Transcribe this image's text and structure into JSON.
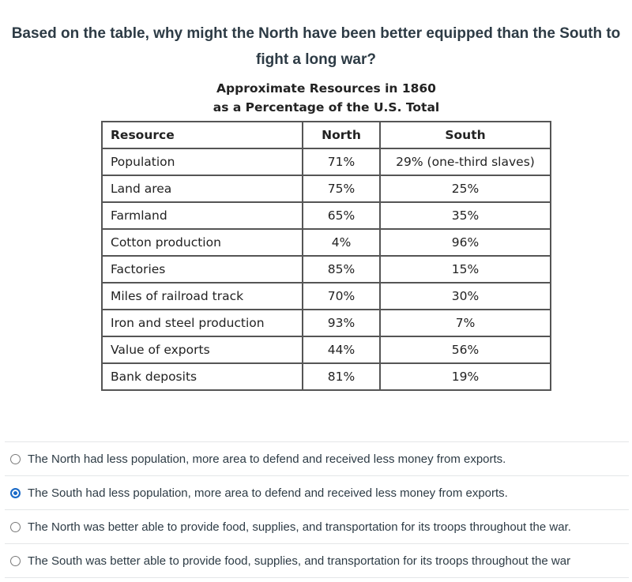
{
  "question": "Based on the table, why might the North have been better equipped than the South to fight a long war?",
  "table": {
    "title_line1": "Approximate Resources in 1860",
    "title_line2": "as a Percentage of the U.S. Total",
    "headers": [
      "Resource",
      "North",
      "South"
    ],
    "rows": [
      [
        "Population",
        "71%",
        "29% (one-third slaves)"
      ],
      [
        "Land area",
        "75%",
        "25%"
      ],
      [
        "Farmland",
        "65%",
        "35%"
      ],
      [
        "Cotton production",
        "4%",
        "96%"
      ],
      [
        "Factories",
        "85%",
        "15%"
      ],
      [
        "Miles of railroad track",
        "70%",
        "30%"
      ],
      [
        "Iron and steel production",
        "93%",
        "7%"
      ],
      [
        "Value of exports",
        "44%",
        "56%"
      ],
      [
        "Bank deposits",
        "81%",
        "19%"
      ]
    ]
  },
  "answers": [
    {
      "label": "The North had less population, more area to defend and received less money from exports.",
      "selected": false
    },
    {
      "label": "The South had less population, more area to defend and received less money from exports.",
      "selected": true
    },
    {
      "label": "The North was better able to provide food, supplies, and transportation for its troops throughout the war.",
      "selected": false
    },
    {
      "label": "The South was better able to provide food, supplies, and transportation for its troops throughout the war",
      "selected": false
    }
  ],
  "colors": {
    "accent": "#1a6ac7",
    "text": "#2d3b45"
  }
}
